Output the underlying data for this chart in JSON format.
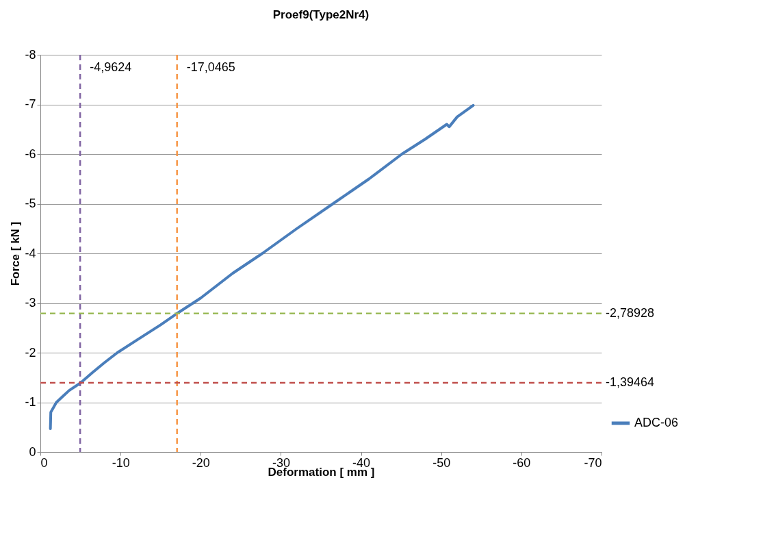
{
  "chart_data": {
    "type": "line",
    "title": "Proef9(Type2Nr4)",
    "xlabel": "Deformation [ mm ]",
    "ylabel": "Force [ kN ]",
    "xlim": [
      0,
      -70
    ],
    "xticks": [
      0,
      -10,
      -20,
      -30,
      -40,
      -50,
      -60,
      -70
    ],
    "ylim": [
      0,
      -8
    ],
    "yticks": [
      0,
      -1,
      -2,
      -3,
      -4,
      -5,
      -6,
      -7,
      -8
    ],
    "grid": "y",
    "legend": "right",
    "marker": "none",
    "line_style": "solid",
    "series": [
      {
        "name": "ADC-06",
        "color": "#4a7ebb",
        "x": [
          -1.25,
          -1.3,
          -2,
          -2.8,
          -3.6,
          -5,
          -6.5,
          -8,
          -9.6,
          -12,
          -15,
          -17.05,
          -20,
          -24,
          -27.7,
          -32,
          -36.5,
          -41,
          -45.1,
          -48,
          -50.7,
          -51,
          -52,
          -54
        ],
        "values": [
          -0.47,
          -0.8,
          -1.0,
          -1.12,
          -1.24,
          -1.39,
          -1.6,
          -1.8,
          -2.0,
          -2.25,
          -2.56,
          -2.79,
          -3.1,
          -3.6,
          -4.0,
          -4.5,
          -5.0,
          -5.5,
          -6.0,
          -6.3,
          -6.6,
          -6.55,
          -6.75,
          -6.98
        ]
      }
    ],
    "ref_lines": [
      {
        "axis": "x",
        "value": -4.9624,
        "label": "-4,9624",
        "color": "#8064a2",
        "line_style": "dashed"
      },
      {
        "axis": "x",
        "value": -17.0465,
        "label": "-17,0465",
        "color": "#f79646",
        "line_style": "dashed"
      },
      {
        "axis": "y",
        "value": -2.78928,
        "label": "-2,78928",
        "color": "#9bbb59",
        "line_style": "dashed"
      },
      {
        "axis": "y",
        "value": -1.39464,
        "label": "-1,39464",
        "color": "#c0504d",
        "line_style": "dashed"
      }
    ]
  }
}
